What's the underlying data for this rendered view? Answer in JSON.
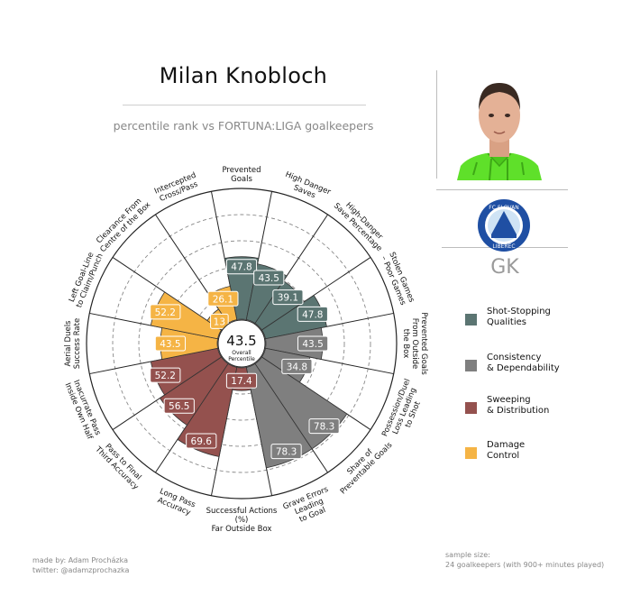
{
  "header": {
    "player_name": "Milan Knobloch",
    "subtitle": "percentile rank vs FORTUNA:LIGA goalkeepers"
  },
  "side": {
    "photo_icon": "player-photo",
    "club_logo_icon": "fc-slovan-liberec-logo",
    "club_logo_text": "FC SLOVAN LIBEREC",
    "position": "GK"
  },
  "legend": {
    "items": [
      {
        "label": "Shot-Stopping\nQualities",
        "color": "#5b7572"
      },
      {
        "label": "Consistency\n& Dependability",
        "color": "#7f7f7f"
      },
      {
        "label": "Sweeping\n& Distribution",
        "color": "#94514e"
      },
      {
        "label": "Damage\nControl",
        "color": "#f5b445"
      }
    ]
  },
  "footer": {
    "made_by": "made by: Adam Procházka\ntwitter: @adamzprochazka",
    "sample": "sample size:\n24 goalkeepers (with 900+ minutes played)"
  },
  "chart_data": {
    "type": "radar-bar",
    "r_range": [
      0,
      100
    ],
    "center": {
      "value": "43.5",
      "label": "Overall\nPercentile"
    },
    "categories": [
      {
        "label": "Prevented\nGoals",
        "value": 47.8,
        "group": 0
      },
      {
        "label": "High Danger\nSaves",
        "value": 43.5,
        "group": 0
      },
      {
        "label": "High-Danger\nSave Percentage",
        "value": 39.1,
        "group": 0
      },
      {
        "label": "Stolen Games\n– Poor Games",
        "value": 47.8,
        "group": 0
      },
      {
        "label": "Prevented Goals\nFrom Outside\nthe Box",
        "value": 43.5,
        "group": 1
      },
      {
        "label": "Possession/Duel\nLoss Leading\nto Shot",
        "value": 34.8,
        "group": 1
      },
      {
        "label": "Share of\nPreventable Goals",
        "value": 78.3,
        "group": 1
      },
      {
        "label": "Grave Errors\nLeading\nto Goal",
        "value": 78.3,
        "group": 1
      },
      {
        "label": "Successful Actions\n(%)\nFar Outside Box",
        "value": 17.4,
        "group": 2
      },
      {
        "label": "Long Pass\nAccuracy",
        "value": 69.6,
        "group": 2
      },
      {
        "label": "Pass to Final\nThird Accuracy",
        "value": 56.5,
        "group": 2
      },
      {
        "label": "Inacurrate Pass\nInside Own Half",
        "value": 52.2,
        "group": 2
      },
      {
        "label": "Aerial Duels\nSuccess Rate",
        "value": 43.5,
        "group": 3
      },
      {
        "label": "Left Goal-Line\nto Claim/Punch",
        "value": 52.2,
        "group": 3
      },
      {
        "label": "Clearance From\nCentre of the Box",
        "value": 13,
        "group": 3
      },
      {
        "label": "Intercepted\nCross/Pass",
        "value": 26.1,
        "group": 3
      }
    ]
  }
}
